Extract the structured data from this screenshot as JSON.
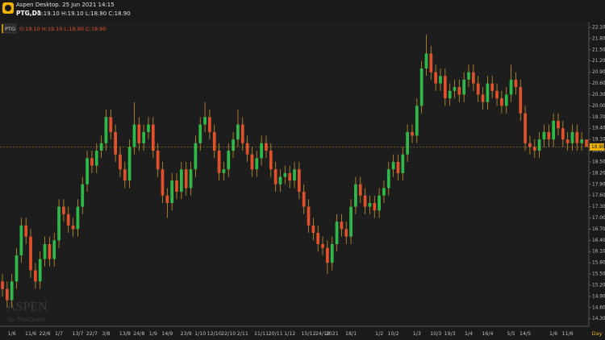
{
  "chart_data": {
    "type": "candlestick",
    "app_title": "Aspen Desktop. 25 Jun 2021 14:15",
    "symbol": "PTG,D1",
    "ohlc_header": "O:19.10 H:19.10 L:18.90 C:18.90",
    "legend_symbol": "PTG",
    "watermark": "ASPEN",
    "watermark_sub": "by ThaiQuest",
    "period": "Day",
    "up_color": "#2fb84a",
    "down_color": "#e0502a",
    "wick_color": "#c8962a",
    "current_price": {
      "value": 18.9,
      "label": "18.90"
    },
    "ylim": [
      14.1,
      22.25
    ],
    "yticks": [
      {
        "value": 14.3,
        "label": "14.30"
      },
      {
        "value": 14.6,
        "label": "14.60"
      },
      {
        "value": 14.9,
        "label": "14.90"
      },
      {
        "value": 15.2,
        "label": "15.20"
      },
      {
        "value": 15.5,
        "label": "15.50"
      },
      {
        "value": 15.8,
        "label": "15.80"
      },
      {
        "value": 16.1,
        "label": "16.10"
      },
      {
        "value": 16.4,
        "label": "16.40"
      },
      {
        "value": 16.7,
        "label": "16.70"
      },
      {
        "value": 17.0,
        "label": "17.00"
      },
      {
        "value": 17.3,
        "label": "17.30"
      },
      {
        "value": 17.6,
        "label": "17.60"
      },
      {
        "value": 17.9,
        "label": "17.90"
      },
      {
        "value": 18.2,
        "label": "18.20"
      },
      {
        "value": 18.5,
        "label": "18.50"
      },
      {
        "value": 18.8,
        "label": "18.80"
      },
      {
        "value": 19.1,
        "label": "19.10"
      },
      {
        "value": 19.4,
        "label": "19.40"
      },
      {
        "value": 19.7,
        "label": "19.70"
      },
      {
        "value": 20.0,
        "label": "20.00"
      },
      {
        "value": 20.3,
        "label": "20.30"
      },
      {
        "value": 20.6,
        "label": "20.60"
      },
      {
        "value": 20.9,
        "label": "20.90"
      },
      {
        "value": 21.2,
        "label": "21.20"
      },
      {
        "value": 21.5,
        "label": "21.50"
      },
      {
        "value": 21.8,
        "label": "21.80"
      },
      {
        "value": 22.1,
        "label": "22.10"
      }
    ],
    "categories": [
      null,
      null,
      "1/6",
      null,
      null,
      null,
      "11/6",
      null,
      null,
      "22/6",
      null,
      null,
      "1/7",
      null,
      null,
      null,
      "13/7",
      null,
      null,
      "22/7",
      null,
      null,
      "3/8",
      null,
      null,
      null,
      "13/8",
      null,
      null,
      "24/8",
      null,
      null,
      "1/9",
      null,
      null,
      "14/9",
      null,
      null,
      null,
      "23/9",
      null,
      null,
      "1/10",
      null,
      null,
      "12/10",
      null,
      null,
      "22/10",
      null,
      null,
      "2/11",
      null,
      null,
      null,
      "11/11",
      null,
      null,
      "20/11",
      null,
      null,
      "1/12",
      null,
      null,
      null,
      "15/12",
      null,
      null,
      "24/12",
      null,
      "2021",
      null,
      null,
      null,
      "18/1",
      null,
      null,
      null,
      null,
      null,
      "1/2",
      null,
      null,
      "10/2",
      null,
      null,
      null,
      null,
      "1/3",
      null,
      null,
      null,
      "10/3",
      null,
      null,
      "19/3",
      null,
      null,
      null,
      "1/4",
      null,
      null,
      null,
      "16/4",
      null,
      null,
      null,
      null,
      "5/5",
      null,
      null,
      "14/5",
      null,
      null,
      null,
      null,
      null,
      "1/6",
      null,
      null,
      "11/6",
      null,
      null,
      null,
      null
    ],
    "open": [
      15.3,
      15.1,
      14.8,
      15.3,
      16.0,
      16.8,
      16.5,
      15.6,
      15.3,
      15.9,
      16.3,
      15.9,
      16.4,
      17.3,
      17.1,
      16.8,
      16.7,
      17.3,
      17.9,
      18.6,
      18.4,
      18.8,
      19.0,
      19.7,
      19.3,
      18.7,
      18.3,
      18.0,
      18.9,
      19.5,
      19.0,
      19.3,
      19.5,
      18.8,
      18.3,
      17.6,
      17.4,
      18.0,
      17.7,
      18.3,
      17.8,
      18.3,
      19.0,
      19.5,
      19.7,
      19.3,
      18.8,
      18.2,
      18.3,
      18.8,
      19.1,
      19.5,
      19.0,
      18.7,
      18.3,
      18.6,
      19.0,
      18.8,
      18.3,
      17.9,
      18.1,
      18.2,
      18.0,
      18.3,
      17.7,
      17.3,
      16.8,
      16.6,
      16.3,
      16.2,
      15.8,
      16.3,
      16.9,
      16.7,
      16.5,
      17.3,
      17.9,
      17.6,
      17.3,
      17.4,
      17.2,
      17.6,
      17.8,
      18.3,
      18.5,
      18.2,
      18.7,
      19.3,
      19.2,
      20.0,
      21.0,
      21.4,
      20.9,
      20.6,
      20.8,
      20.2,
      20.4,
      20.5,
      20.3,
      20.7,
      20.9,
      20.6,
      20.3,
      20.1,
      20.6,
      20.4,
      20.2,
      20.0,
      20.3,
      20.7,
      20.5,
      19.8,
      19.0,
      18.9,
      18.8,
      19.1,
      19.3,
      19.1,
      19.6,
      19.4,
      19.1,
      19.0,
      19.3,
      19.0,
      19.1
    ],
    "high": [
      15.5,
      15.3,
      15.5,
      16.2,
      17.0,
      17.0,
      16.7,
      15.8,
      16.1,
      16.5,
      16.5,
      16.6,
      17.5,
      17.5,
      17.3,
      17.0,
      17.5,
      18.1,
      18.8,
      18.8,
      19.0,
      19.2,
      19.9,
      19.9,
      19.5,
      18.9,
      18.5,
      19.1,
      20.1,
      19.7,
      19.5,
      19.7,
      19.7,
      19.0,
      18.5,
      17.8,
      18.2,
      18.2,
      18.5,
      18.5,
      18.5,
      19.2,
      19.7,
      20.1,
      19.9,
      19.5,
      19.0,
      18.5,
      19.0,
      19.3,
      19.9,
      19.7,
      19.2,
      18.9,
      18.8,
      19.2,
      19.2,
      19.0,
      18.5,
      18.3,
      18.4,
      18.4,
      18.5,
      18.5,
      17.9,
      17.5,
      17.0,
      16.8,
      16.5,
      16.4,
      16.5,
      17.1,
      17.1,
      16.9,
      17.5,
      18.1,
      18.1,
      17.8,
      17.6,
      17.6,
      17.8,
      18.0,
      18.5,
      18.7,
      18.7,
      18.9,
      19.5,
      19.5,
      20.2,
      21.2,
      21.9,
      21.6,
      21.1,
      21.0,
      21.0,
      20.6,
      20.7,
      20.7,
      20.9,
      21.1,
      21.1,
      20.8,
      20.5,
      20.8,
      20.8,
      20.6,
      20.4,
      20.5,
      21.1,
      20.9,
      20.7,
      20.0,
      19.2,
      19.1,
      19.3,
      19.5,
      19.5,
      19.8,
      19.8,
      19.6,
      19.3,
      19.5,
      19.5,
      19.3,
      19.1
    ],
    "low": [
      14.9,
      14.6,
      14.6,
      15.1,
      15.8,
      16.3,
      15.4,
      15.1,
      15.1,
      15.7,
      15.7,
      15.7,
      16.2,
      16.9,
      16.6,
      16.5,
      16.5,
      17.1,
      17.7,
      18.2,
      18.2,
      18.6,
      18.8,
      19.1,
      18.5,
      18.1,
      17.8,
      17.8,
      18.7,
      18.8,
      18.8,
      19.1,
      18.6,
      18.1,
      17.4,
      17.0,
      17.2,
      17.5,
      17.5,
      17.6,
      17.6,
      18.1,
      18.8,
      19.3,
      19.1,
      18.6,
      18.0,
      18.0,
      18.1,
      18.6,
      18.9,
      18.8,
      18.5,
      18.1,
      18.1,
      18.4,
      18.6,
      18.1,
      17.7,
      17.7,
      17.9,
      17.8,
      17.8,
      17.5,
      17.1,
      16.6,
      16.4,
      16.1,
      16.0,
      15.5,
      15.6,
      16.1,
      16.5,
      16.3,
      16.3,
      17.1,
      17.4,
      17.1,
      17.1,
      17.0,
      17.0,
      17.4,
      17.6,
      18.1,
      18.0,
      18.0,
      18.5,
      19.0,
      19.0,
      19.8,
      20.8,
      20.7,
      20.4,
      20.4,
      20.0,
      20.0,
      20.2,
      20.1,
      20.1,
      20.5,
      20.4,
      20.1,
      19.9,
      19.9,
      20.2,
      20.0,
      19.8,
      19.8,
      20.1,
      20.3,
      19.6,
      18.8,
      18.7,
      18.6,
      18.6,
      18.9,
      18.9,
      18.9,
      19.2,
      18.9,
      18.8,
      18.8,
      18.8,
      18.8,
      18.9
    ],
    "close": [
      15.1,
      14.8,
      15.3,
      16.0,
      16.8,
      16.5,
      15.6,
      15.3,
      15.9,
      16.3,
      15.9,
      16.4,
      17.3,
      17.1,
      16.8,
      16.7,
      17.3,
      17.9,
      18.6,
      18.4,
      18.8,
      19.0,
      19.7,
      19.3,
      18.7,
      18.3,
      18.0,
      18.9,
      19.5,
      19.0,
      19.3,
      19.5,
      18.8,
      18.3,
      17.6,
      17.4,
      18.0,
      17.7,
      18.3,
      17.8,
      18.3,
      19.0,
      19.5,
      19.7,
      19.3,
      18.8,
      18.2,
      18.3,
      18.8,
      19.1,
      19.5,
      19.0,
      18.7,
      18.3,
      18.6,
      19.0,
      18.8,
      18.3,
      17.9,
      18.1,
      18.2,
      18.0,
      18.3,
      17.7,
      17.3,
      16.8,
      16.6,
      16.3,
      16.2,
      15.8,
      16.3,
      16.9,
      16.7,
      16.5,
      17.3,
      17.9,
      17.6,
      17.3,
      17.4,
      17.2,
      17.6,
      17.8,
      18.3,
      18.5,
      18.2,
      18.7,
      19.3,
      19.2,
      20.0,
      21.0,
      21.4,
      20.9,
      20.6,
      20.8,
      20.2,
      20.4,
      20.5,
      20.3,
      20.7,
      20.9,
      20.6,
      20.3,
      20.1,
      20.6,
      20.4,
      20.2,
      20.0,
      20.3,
      20.7,
      20.5,
      19.8,
      19.0,
      18.9,
      18.8,
      19.1,
      19.3,
      19.1,
      19.6,
      19.4,
      19.1,
      19.0,
      19.3,
      19.0,
      19.1,
      18.9
    ]
  }
}
